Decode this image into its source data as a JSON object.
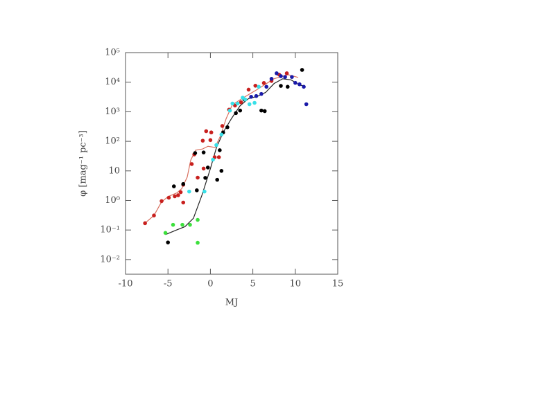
{
  "chart_data": {
    "type": "scatter",
    "x_label": "MJ",
    "y_label": "φ [mag⁻¹ pc⁻³]",
    "xlim": [
      -10,
      15
    ],
    "xticks": [
      -10,
      -5,
      0,
      5,
      10,
      15
    ],
    "ylim": [
      0.0032,
      100000
    ],
    "log_y": true,
    "yticks": [
      {
        "value": 100000,
        "label": "10⁵"
      },
      {
        "value": 10000,
        "label": "10⁴"
      },
      {
        "value": 1000,
        "label": "10³"
      },
      {
        "value": 100,
        "label": "10²"
      },
      10,
      {
        "value": 1,
        "label": "10⁰"
      },
      {
        "value": 0.1,
        "label": "10⁻¹"
      },
      {
        "value": 0.01,
        "label": "10⁻²"
      }
    ],
    "series": [
      {
        "style": "line",
        "color": "#d9705f",
        "x": [
          -7.71,
          -6.65,
          -5.75,
          -4.93,
          -3.95,
          -3.38,
          -2.73,
          -2.32,
          -1.75,
          -0.93,
          -0.28,
          0.54,
          1.19,
          1.85,
          2.57,
          3.81,
          5.44,
          7.48,
          9.12,
          10.34
        ],
        "values": [
          0.17,
          0.31,
          0.9,
          1.38,
          1.8,
          2.5,
          6.2,
          23,
          50,
          55,
          68,
          62,
          154,
          580,
          1700,
          2900,
          5500,
          13000,
          18000,
          14500
        ]
      },
      {
        "style": "line",
        "color": "#222222",
        "x": [
          -5.3,
          -4,
          -3,
          -2,
          -1,
          0,
          0.7,
          1.5,
          2.5,
          3.5,
          4.5,
          5.5,
          6.5,
          7.5,
          8.5,
          9.5,
          10.5,
          11
        ],
        "values": [
          0.07,
          0.1,
          0.13,
          0.25,
          1.5,
          12,
          60,
          200,
          600,
          1600,
          2800,
          3300,
          4500,
          9000,
          13000,
          12000,
          8000,
          7500
        ]
      },
      {
        "style": "points",
        "color": "#c8201e",
        "x": [
          -7.7,
          -6.65,
          -5.75,
          -4.9,
          -4.2,
          -3.8,
          -3.5,
          -3.2,
          -3.2,
          -2.2,
          -1.9,
          -0.9,
          -0.5,
          -1.5,
          -0.8,
          0,
          0.1,
          0.5,
          1,
          1.4,
          2.2,
          2.9,
          3.6,
          4.5,
          5.3,
          6.3,
          7.2,
          8.1,
          9
        ],
        "values": [
          0.17,
          0.31,
          0.95,
          1.24,
          1.38,
          1.5,
          1.9,
          3.4,
          0.85,
          17,
          36,
          105,
          220,
          5.9,
          12,
          110,
          200,
          29,
          29,
          330,
          1180,
          1620,
          2100,
          5600,
          7600,
          9400,
          11000,
          18000,
          20000
        ]
      },
      {
        "style": "points",
        "color": "#000000",
        "x": [
          -5,
          -4.3,
          -3.2,
          -1.6,
          -1.8,
          -0.8,
          -0.6,
          -0.3,
          0.8,
          1.1,
          1.3,
          1.5,
          2,
          3,
          3.5,
          4,
          6,
          6.4,
          8.3,
          9.1,
          10.8
        ],
        "values": [
          0.038,
          3,
          3.6,
          2.2,
          40,
          42,
          5.8,
          13,
          5,
          50,
          10,
          200,
          300,
          900,
          1100,
          2600,
          1100,
          1050,
          7500,
          7000,
          26000
        ]
      },
      {
        "style": "points",
        "color": "#38e0e8",
        "x": [
          -2.5,
          -0.7,
          0.3,
          0.7,
          1.3,
          2.3,
          2.6,
          3.2,
          3.8,
          4.1,
          4.6,
          5.2,
          5.7
        ],
        "values": [
          2,
          2,
          24,
          75,
          170,
          1100,
          1900,
          1900,
          3000,
          2600,
          1800,
          2000,
          7000
        ]
      },
      {
        "style": "points",
        "color": "#3ce03c",
        "x": [
          -5.3,
          -4.4,
          -3.3,
          -2.4,
          -1.5,
          -1.5
        ],
        "values": [
          0.08,
          0.15,
          0.15,
          0.15,
          0.22,
          0.037
        ]
      },
      {
        "style": "points",
        "color": "#1a1aa8",
        "x": [
          4.8,
          5.4,
          6,
          6.6,
          7.2,
          7.8,
          8.3,
          8.8,
          9.6,
          10,
          10.5,
          11,
          11.3
        ],
        "values": [
          3200,
          3400,
          4000,
          7000,
          13000,
          20000,
          16000,
          15000,
          15000,
          9500,
          8500,
          7000,
          1800
        ]
      }
    ]
  }
}
